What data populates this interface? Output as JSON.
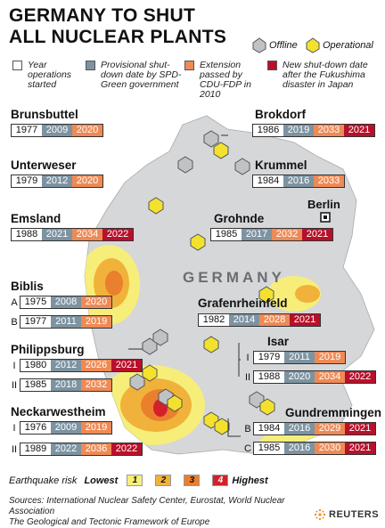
{
  "title": [
    "GERMANY TO SHUT",
    "ALL NUCLEAR PLANTS"
  ],
  "status_legend": {
    "offline": "Offline",
    "operational": "Operational"
  },
  "legend": [
    {
      "label": "Year operations started",
      "color": "#ffffff"
    },
    {
      "label": "Provisional shut-down date by SPD-Green government",
      "color": "#7d93a1"
    },
    {
      "label": "Extension passed by CDU-FDP in 2010",
      "color": "#ee8a55"
    },
    {
      "label": "New shut-down date after the Fukushima disaster in Japan",
      "color": "#b8102a"
    }
  ],
  "plants": {
    "brunsbuttel": {
      "name": "Brunsbuttel",
      "rows": [
        {
          "label": "",
          "values": [
            "1977",
            "2009",
            "2020"
          ]
        }
      ]
    },
    "unterweser": {
      "name": "Unterweser",
      "rows": [
        {
          "label": "",
          "values": [
            "1979",
            "2012",
            "2020"
          ]
        }
      ]
    },
    "emsland": {
      "name": "Emsland",
      "rows": [
        {
          "label": "",
          "values": [
            "1988",
            "2021",
            "2034",
            "2022"
          ]
        }
      ]
    },
    "biblis": {
      "name": "Biblis",
      "rows": [
        {
          "label": "A",
          "values": [
            "1975",
            "2008",
            "2020"
          ]
        },
        {
          "label": "B",
          "values": [
            "1977",
            "2011",
            "2019"
          ]
        }
      ]
    },
    "philippsburg": {
      "name": "Philippsburg",
      "rows": [
        {
          "label": "I",
          "values": [
            "1980",
            "2012",
            "2026",
            "2021"
          ]
        },
        {
          "label": "II",
          "values": [
            "1985",
            "2018",
            "2032"
          ]
        }
      ]
    },
    "neckarwestheim": {
      "name": "Neckarwestheim",
      "rows": [
        {
          "label": "I",
          "values": [
            "1976",
            "2009",
            "2019"
          ]
        },
        {
          "label": "II",
          "values": [
            "1989",
            "2022",
            "2036",
            "2022"
          ]
        }
      ]
    },
    "brokdorf": {
      "name": "Brokdorf",
      "rows": [
        {
          "label": "",
          "values": [
            "1986",
            "2019",
            "2033",
            "2021"
          ]
        }
      ]
    },
    "krummel": {
      "name": "Krummel",
      "rows": [
        {
          "label": "",
          "values": [
            "1984",
            "2016",
            "2033"
          ]
        }
      ]
    },
    "grohnde": {
      "name": "Grohnde",
      "rows": [
        {
          "label": "",
          "values": [
            "1985",
            "2017",
            "2032",
            "2021"
          ]
        }
      ]
    },
    "grafenrheinfeld": {
      "name": "Grafenrheinfeld",
      "rows": [
        {
          "label": "",
          "values": [
            "1982",
            "2014",
            "2028",
            "2021"
          ]
        }
      ]
    },
    "isar": {
      "name": "Isar",
      "rows": [
        {
          "label": "I",
          "values": [
            "1979",
            "2011",
            "2019"
          ]
        },
        {
          "label": "II",
          "values": [
            "1988",
            "2020",
            "2034",
            "2022"
          ]
        }
      ]
    },
    "gundremmingen": {
      "name": "Gundremmingen",
      "rows": [
        {
          "label": "B",
          "values": [
            "1984",
            "2016",
            "2029",
            "2021"
          ]
        },
        {
          "label": "C",
          "values": [
            "1985",
            "2016",
            "2030",
            "2021"
          ]
        }
      ]
    }
  },
  "map": {
    "country": "GERMANY",
    "capital": "Berlin"
  },
  "earthquake": {
    "label": "Earthquake risk",
    "lowest": "Lowest",
    "highest": "Highest",
    "levels": [
      {
        "value": "1",
        "color": "#f7ee7a"
      },
      {
        "value": "2",
        "color": "#f0b23a"
      },
      {
        "value": "3",
        "color": "#ea7f2e"
      },
      {
        "value": "4",
        "color": "#d4202a"
      }
    ]
  },
  "sources": [
    "Sources: International Nuclear Safety Center, Eurostat, World Nuclear Association",
    "The Geological and Tectonic Framework of Europe"
  ],
  "brand": "REUTERS"
}
